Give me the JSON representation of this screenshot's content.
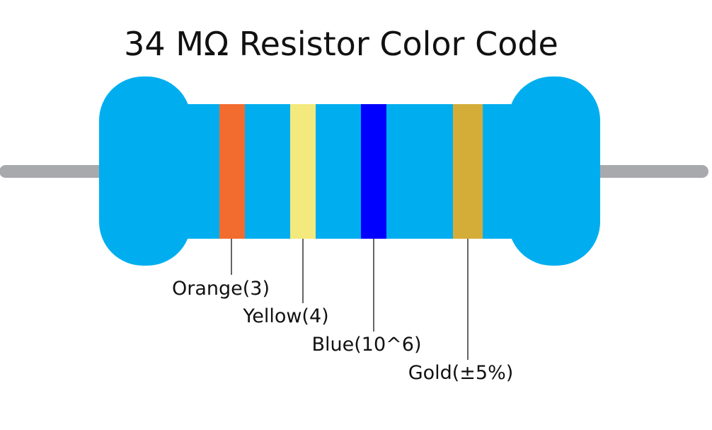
{
  "title": "34 MΩ Resistor Color Code",
  "colors": {
    "body": "#00aeef",
    "lead": "#a7a9ac",
    "leader_line": "#000000"
  },
  "bands": [
    {
      "color_name": "Orange",
      "color": "#f26c30",
      "label": "Orange(3)"
    },
    {
      "color_name": "Yellow",
      "color": "#f3e97c",
      "label": "Yellow(4)"
    },
    {
      "color_name": "Blue",
      "color": "#0000ff",
      "label": "Blue(10^6)"
    },
    {
      "color_name": "Gold",
      "color": "#d4ad38",
      "label": "Gold(±5%)"
    }
  ]
}
